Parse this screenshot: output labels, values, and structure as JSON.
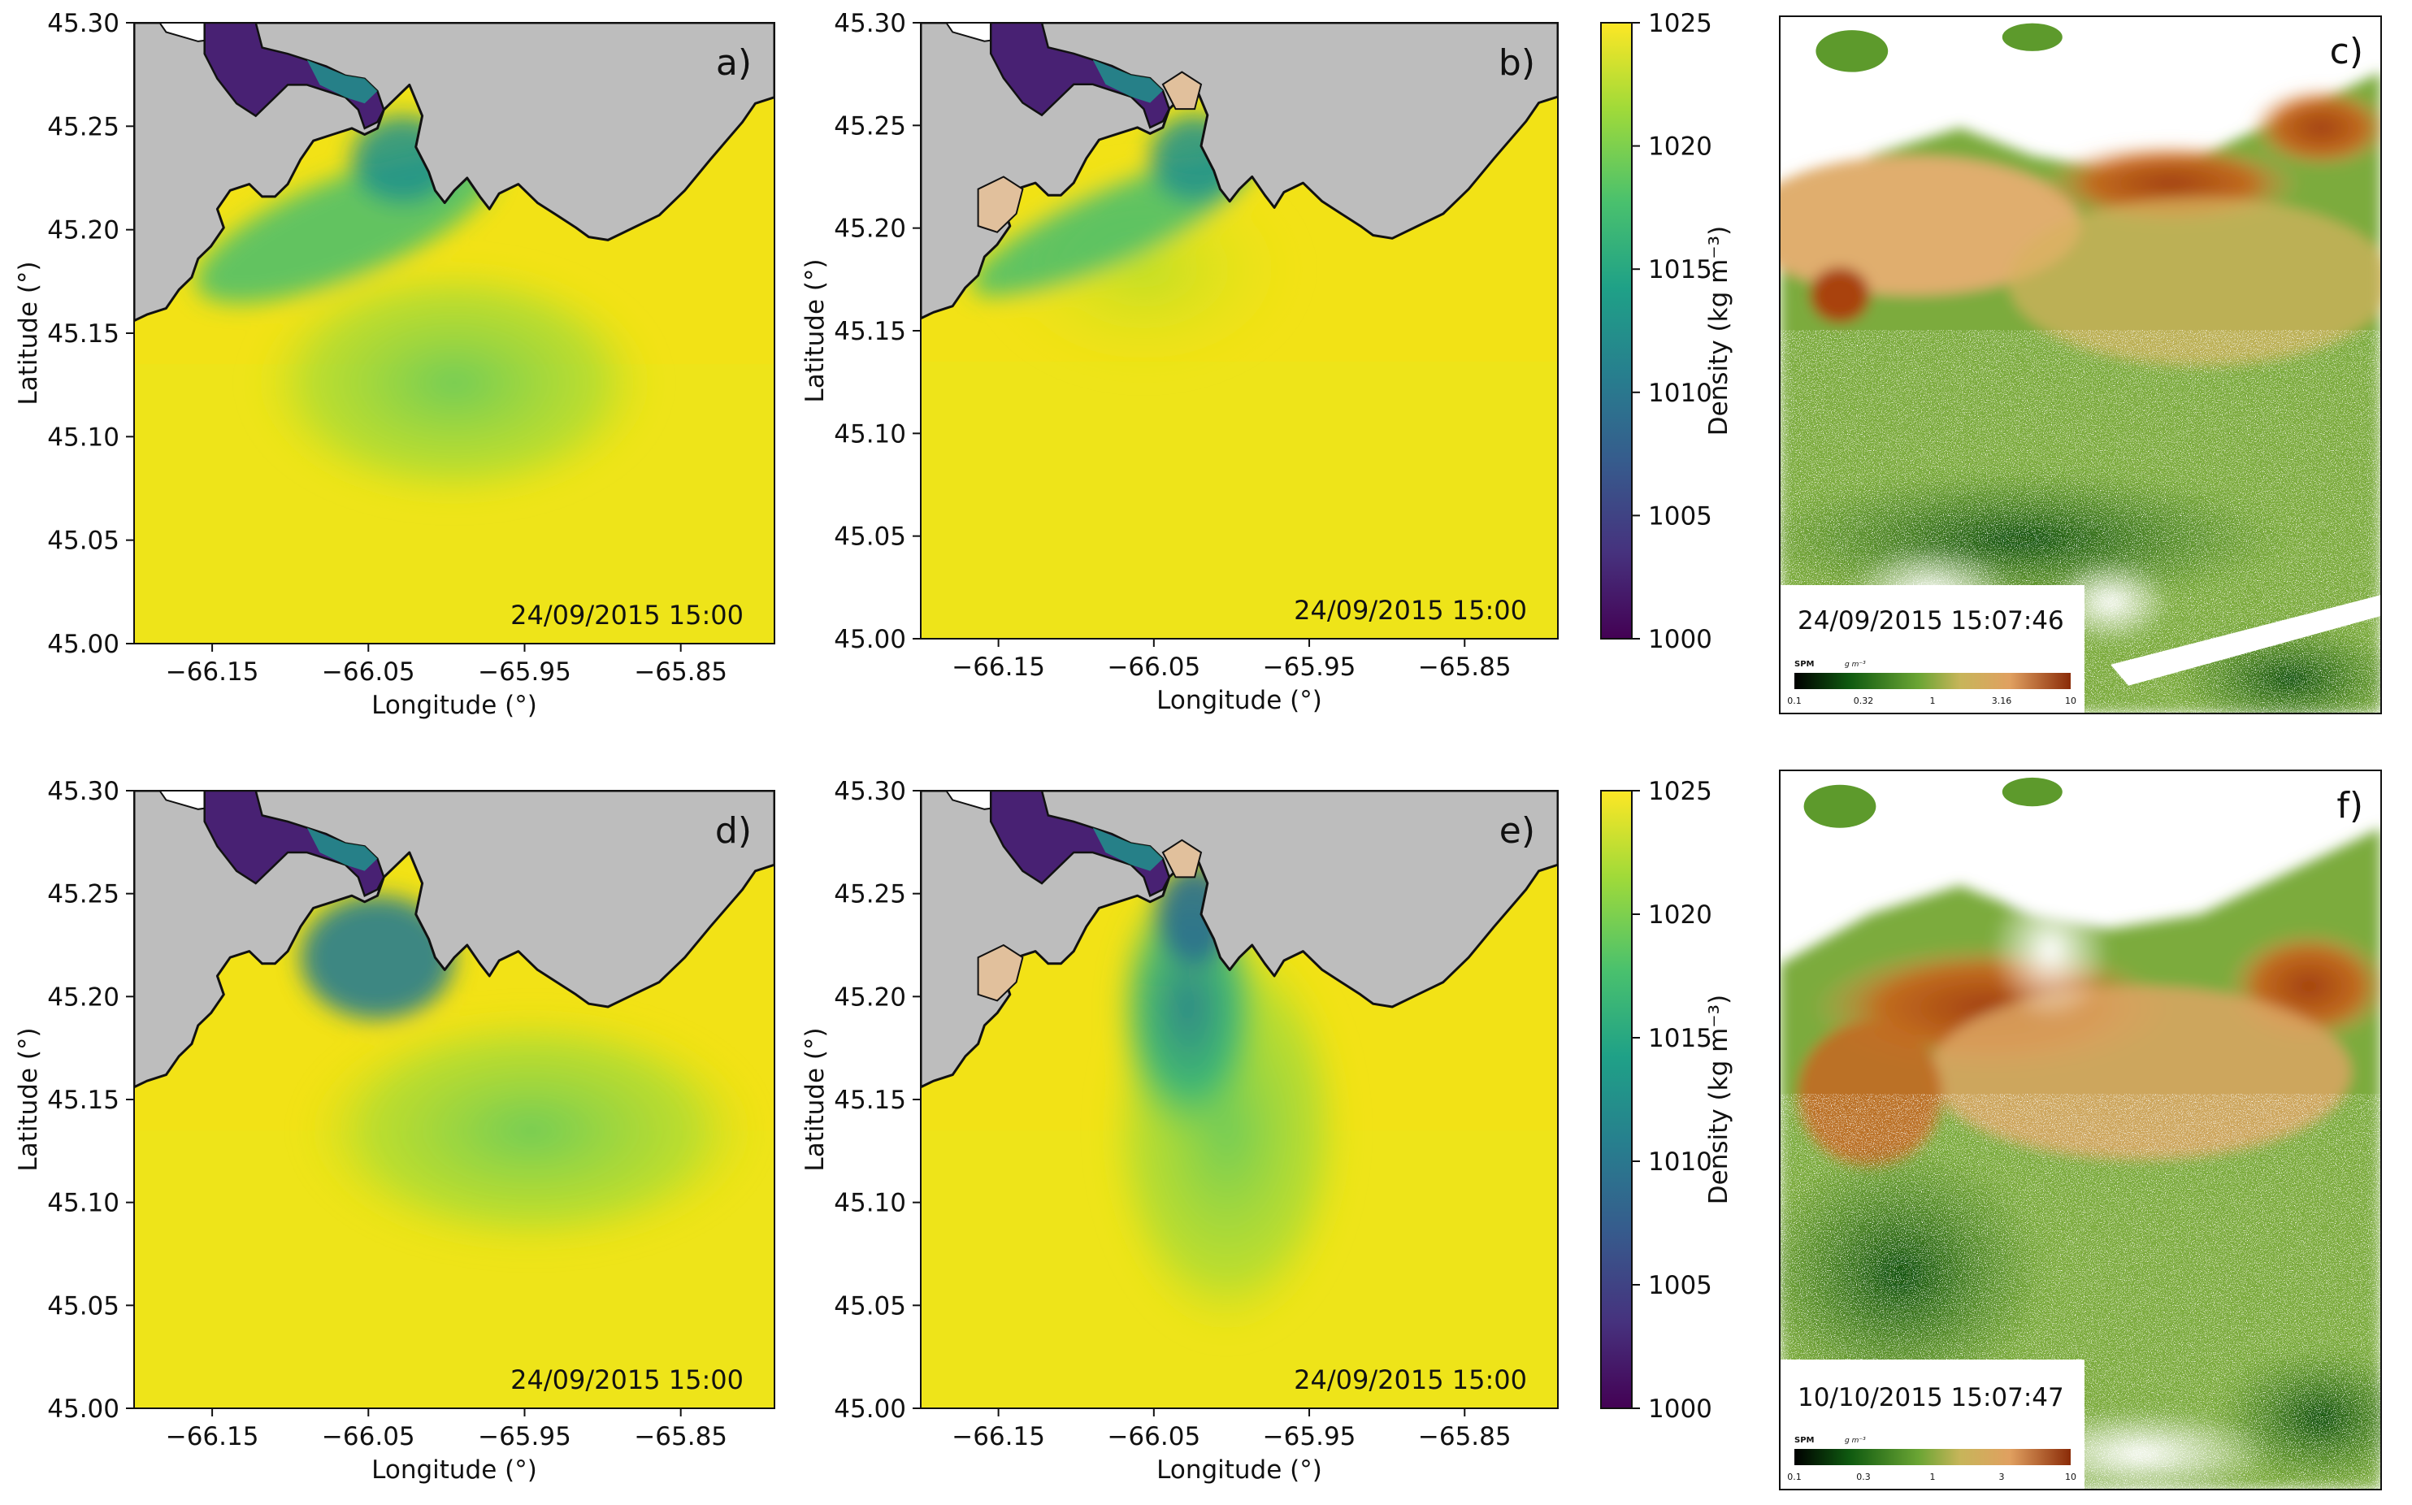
{
  "figure": {
    "colors": {
      "land": "#bdbdbd",
      "coast": "#111111",
      "sea_high": "#f2e216",
      "river_low": "#482173",
      "marsh": "#e1c09c",
      "cloud": "#ffffff",
      "spm_low": "#0e4e0c",
      "spm_mid": "#7cab3c",
      "spm_high": "#9b3a0c"
    },
    "density_colorbar": {
      "label": "Density (kg m⁻³)",
      "min": 1000,
      "max": 1025,
      "ticks": [
        "1025",
        "1020",
        "1015",
        "1010",
        "1005",
        "1000"
      ],
      "colormap": "viridis"
    },
    "spm_colorbar": {
      "title": "SPM",
      "unit": "g m⁻³",
      "ticks_c": [
        "0.1",
        "0.32",
        "1",
        "3.16",
        "10"
      ],
      "ticks_f": [
        "0.1",
        "0.3",
        "1",
        "3",
        "10"
      ]
    }
  },
  "chart_data": [
    {
      "panel": "a)",
      "type": "heatmap",
      "title": "",
      "variable": "Surface density (kg m⁻³)",
      "timestamp": "24/09/2015 15:00",
      "xlabel": "Longitude (°)",
      "ylabel": "Latitude (°)",
      "xlim": [
        -66.2,
        -65.79
      ],
      "ylim": [
        45.0,
        45.3
      ],
      "xticks": [
        "−66.15",
        "−66.05",
        "−65.95",
        "−65.85"
      ],
      "yticks": [
        "45.30",
        "45.25",
        "45.20",
        "45.15",
        "45.10",
        "45.05",
        "45.00"
      ],
      "plume": "moderate plume spreading southwest along coast",
      "density_range": [
        1000,
        1025
      ]
    },
    {
      "panel": "b)",
      "type": "heatmap",
      "title": "",
      "variable": "Surface density (kg m⁻³)",
      "timestamp": "24/09/2015 15:00",
      "xlabel": "Longitude (°)",
      "ylabel": "Latitude (°)",
      "xlim": [
        -66.2,
        -65.79
      ],
      "ylim": [
        45.0,
        45.3
      ],
      "xticks": [
        "−66.15",
        "−66.05",
        "−65.95",
        "−65.85"
      ],
      "yticks": [
        "45.30",
        "45.25",
        "45.20",
        "45.15",
        "45.10",
        "45.05",
        "45.00"
      ],
      "plume": "narrow coastal plume with intertidal marsh shown",
      "density_range": [
        1000,
        1025
      ]
    },
    {
      "panel": "c)",
      "type": "heatmap",
      "title": "",
      "variable": "SPM (g m⁻³)",
      "timestamp": "24/09/2015 15:07:46",
      "scale": "log",
      "range": [
        0.1,
        10
      ]
    },
    {
      "panel": "d)",
      "type": "heatmap",
      "title": "",
      "variable": "Surface density (kg m⁻³)",
      "timestamp": "24/09/2015 15:00",
      "xlabel": "Longitude (°)",
      "ylabel": "Latitude (°)",
      "xlim": [
        -66.2,
        -65.79
      ],
      "ylim": [
        45.0,
        45.3
      ],
      "xticks": [
        "−66.15",
        "−66.05",
        "−65.95",
        "−65.85"
      ],
      "yticks": [
        "45.30",
        "45.25",
        "45.20",
        "45.15",
        "45.10",
        "45.05",
        "45.00"
      ],
      "plume": "plume detached offshore toward southeast",
      "density_range": [
        1000,
        1025
      ]
    },
    {
      "panel": "e)",
      "type": "heatmap",
      "title": "",
      "variable": "Surface density (kg m⁻³)",
      "timestamp": "24/09/2015 15:00",
      "xlabel": "Longitude (°)",
      "ylabel": "Latitude (°)",
      "xlim": [
        -66.2,
        -65.79
      ],
      "ylim": [
        45.0,
        45.3
      ],
      "xticks": [
        "−66.15",
        "−66.05",
        "−65.95",
        "−65.85"
      ],
      "yticks": [
        "45.30",
        "45.25",
        "45.20",
        "45.15",
        "45.10",
        "45.05",
        "45.00"
      ],
      "plume": "strong plume extending south from river mouth",
      "density_range": [
        1000,
        1025
      ]
    },
    {
      "panel": "f)",
      "type": "heatmap",
      "title": "",
      "variable": "SPM (g m⁻³)",
      "timestamp": "10/10/2015 15:07:47",
      "scale": "log",
      "range": [
        0.1,
        10
      ]
    }
  ]
}
